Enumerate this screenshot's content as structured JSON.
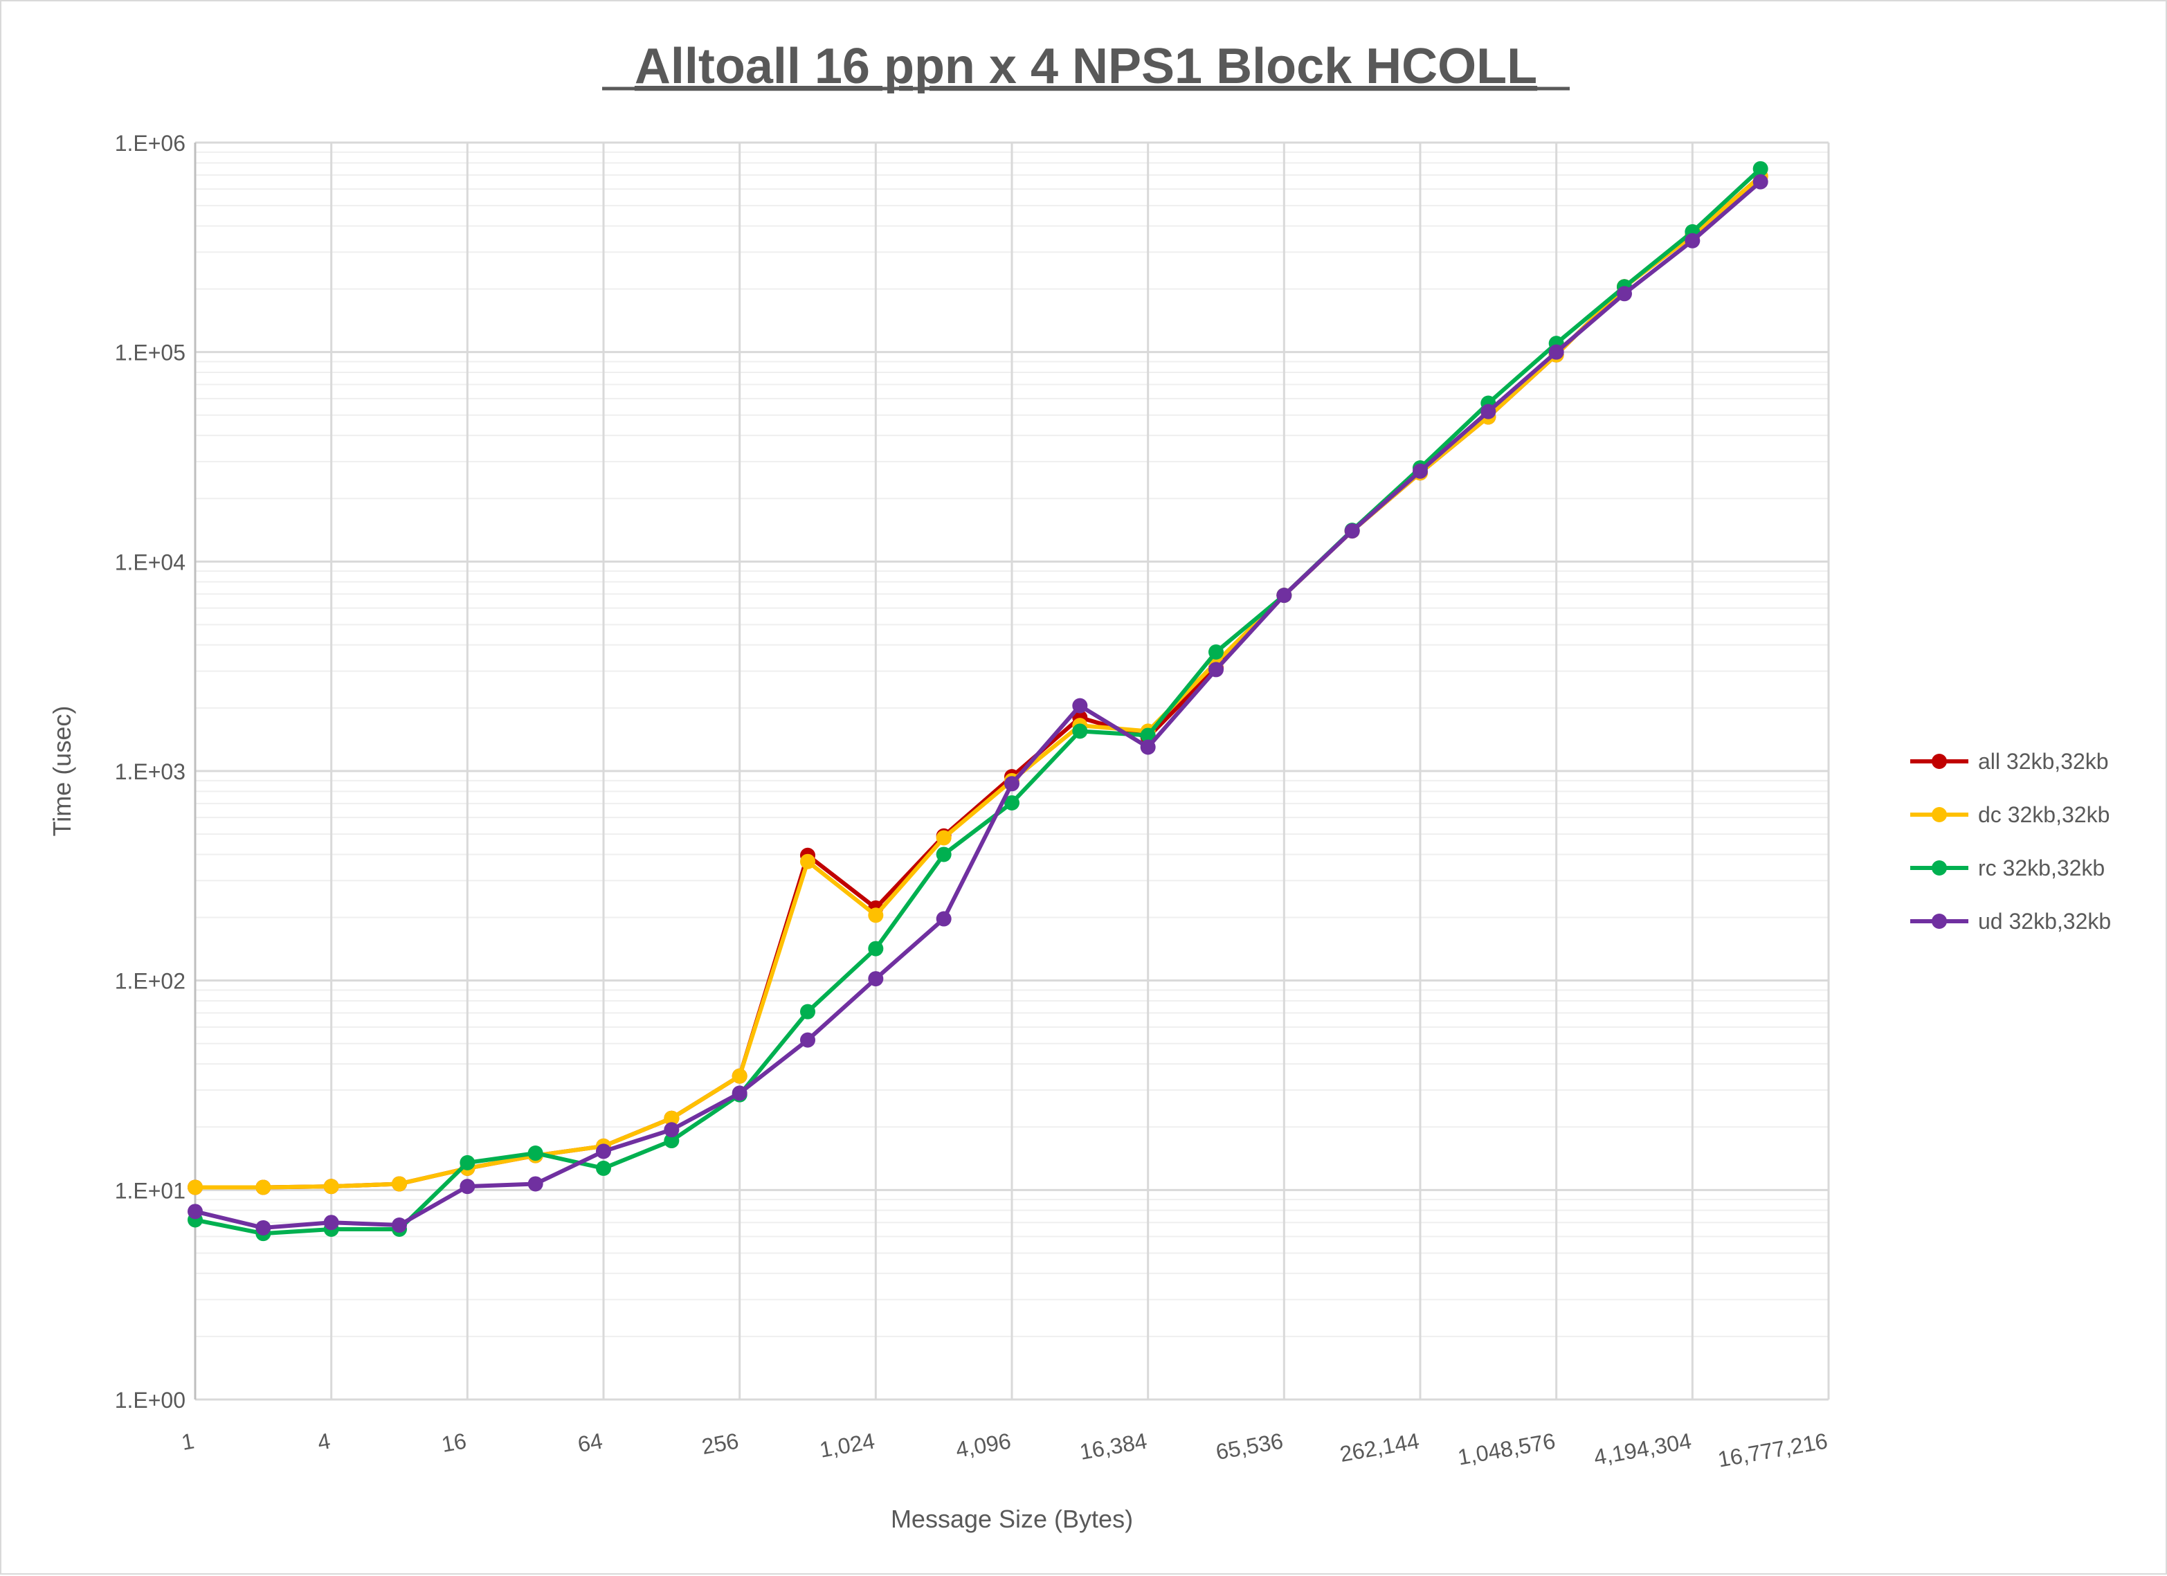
{
  "chart_data": {
    "type": "line",
    "title": "Alltoall 16 ppn x 4 NPS1 Block HCOLL",
    "xlabel": "Message Size (Bytes)",
    "ylabel": "Time (usec)",
    "x_scale": "log2",
    "y_scale": "log10",
    "ylim": [
      1,
      1000000
    ],
    "y_ticks": [
      "1.E+00",
      "1.E+01",
      "1.E+02",
      "1.E+03",
      "1.E+04",
      "1.E+05",
      "1.E+06"
    ],
    "x_tick_labels": [
      "1",
      "4",
      "16",
      "64",
      "256",
      "1,024",
      "4,096",
      "16,384",
      "65,536",
      "262,144",
      "1,048,576",
      "4,194,304",
      "16,777,216"
    ],
    "x": [
      1,
      2,
      4,
      8,
      16,
      32,
      64,
      128,
      256,
      512,
      1024,
      2048,
      4096,
      8192,
      16384,
      32768,
      65536,
      131072,
      262144,
      524288,
      1048576,
      2097152,
      4194304,
      8388608
    ],
    "grid": true,
    "legend_position": "right",
    "series": [
      {
        "name": "all 32kb,32kb",
        "color": "#c00000",
        "values": [
          10.3,
          10.3,
          10.4,
          10.7,
          12.7,
          14.6,
          16.2,
          22,
          35,
          396,
          222,
          490,
          940,
          1800,
          1450,
          3100,
          6900,
          14000,
          26500,
          49000,
          97000,
          205000,
          360000,
          690000
        ]
      },
      {
        "name": "dc 32kb,32kb",
        "color": "#ffc000",
        "values": [
          10.3,
          10.3,
          10.4,
          10.7,
          12.7,
          14.6,
          16.2,
          22,
          35,
          370,
          205,
          480,
          900,
          1650,
          1550,
          3300,
          6900,
          14000,
          26500,
          49000,
          97000,
          205000,
          360000,
          690000
        ]
      },
      {
        "name": "rc 32kb,32kb",
        "color": "#00b050",
        "values": [
          7.2,
          6.2,
          6.5,
          6.5,
          13.5,
          15,
          12.7,
          17.2,
          28.5,
          71,
          142,
          400,
          705,
          1550,
          1480,
          3700,
          6900,
          14100,
          28000,
          57000,
          110000,
          205000,
          375000,
          750000
        ]
      },
      {
        "name": "ud 32kb,32kb",
        "color": "#7030a0",
        "values": [
          7.9,
          6.6,
          7.0,
          6.8,
          10.4,
          10.7,
          15.3,
          19.4,
          29,
          52,
          102,
          197,
          870,
          2050,
          1300,
          3050,
          6900,
          14000,
          27000,
          52000,
          100000,
          190000,
          340000,
          650000
        ]
      }
    ]
  }
}
